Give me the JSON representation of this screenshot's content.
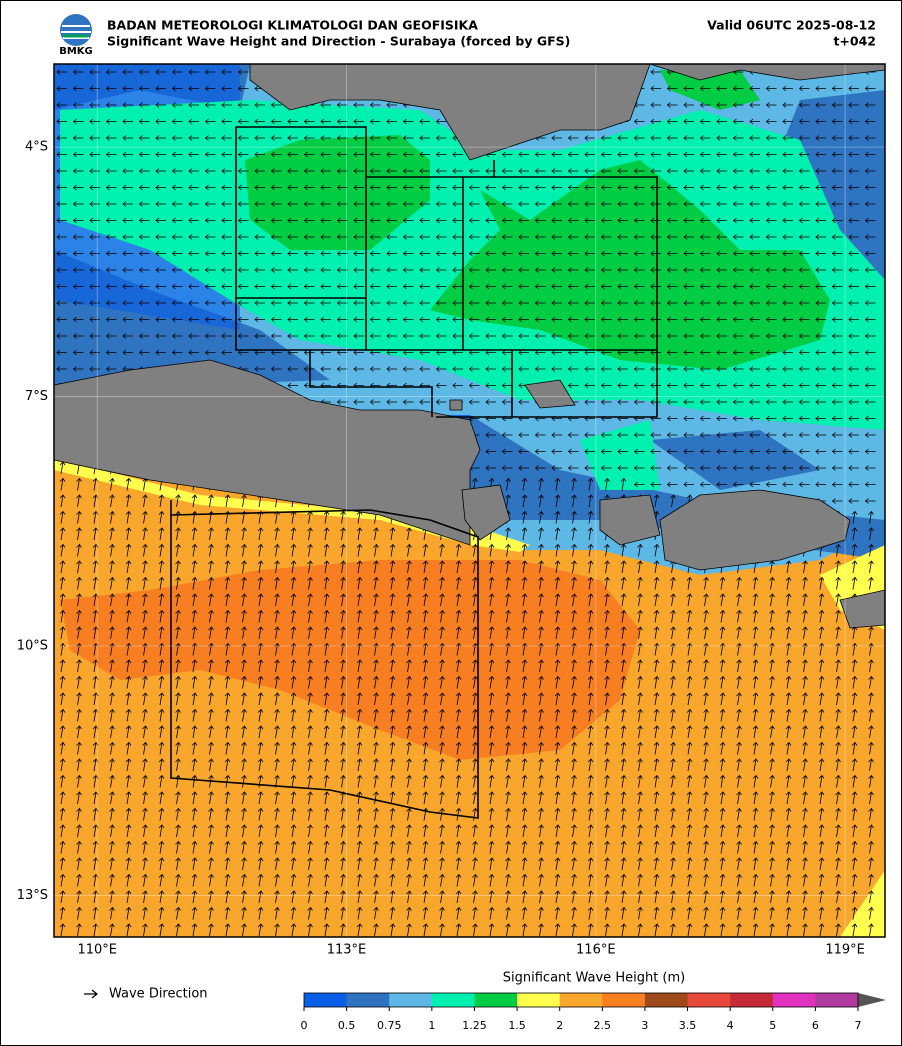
{
  "header": {
    "logo": "BMKG",
    "agency": "BADAN METEOROLOGI KLIMATOLOGI DAN GEOFISIKA",
    "title": "Significant Wave Height and Direction - Surabaya (forced by GFS)",
    "valid": "Valid 06UTC 2025-08-12",
    "lead": "t+042"
  },
  "map": {
    "xlim": [
      109.48,
      119.48
    ],
    "ylim": [
      -13.5,
      -3.0
    ],
    "xticks": [
      {
        "value": 110,
        "label": "110°E"
      },
      {
        "value": 113,
        "label": "113°E"
      },
      {
        "value": 116,
        "label": "116°E"
      },
      {
        "value": 119,
        "label": "119°E"
      }
    ],
    "yticks": [
      {
        "value": -4,
        "label": "4°S"
      },
      {
        "value": -7,
        "label": "7°S"
      },
      {
        "value": -10,
        "label": "10°S"
      },
      {
        "value": -13,
        "label": "13°S"
      }
    ],
    "grid": true
  },
  "legend": {
    "arrow_label": "Wave Direction"
  },
  "colorbar": {
    "title": "Significant Wave Height (m)",
    "levels": [
      0,
      0.5,
      0.75,
      1,
      1.25,
      1.5,
      2,
      2.5,
      3,
      3.5,
      4,
      5,
      6,
      7
    ],
    "colors": [
      "#0a5fe8",
      "#2f74c0",
      "#5db8e6",
      "#00f0b0",
      "#00cc44",
      "#ffff4d",
      "#f9a62d",
      "#f77f22",
      "#9c4a1a",
      "#e8483a",
      "#c42b36",
      "#e031c0",
      "#b03aa0"
    ]
  }
}
